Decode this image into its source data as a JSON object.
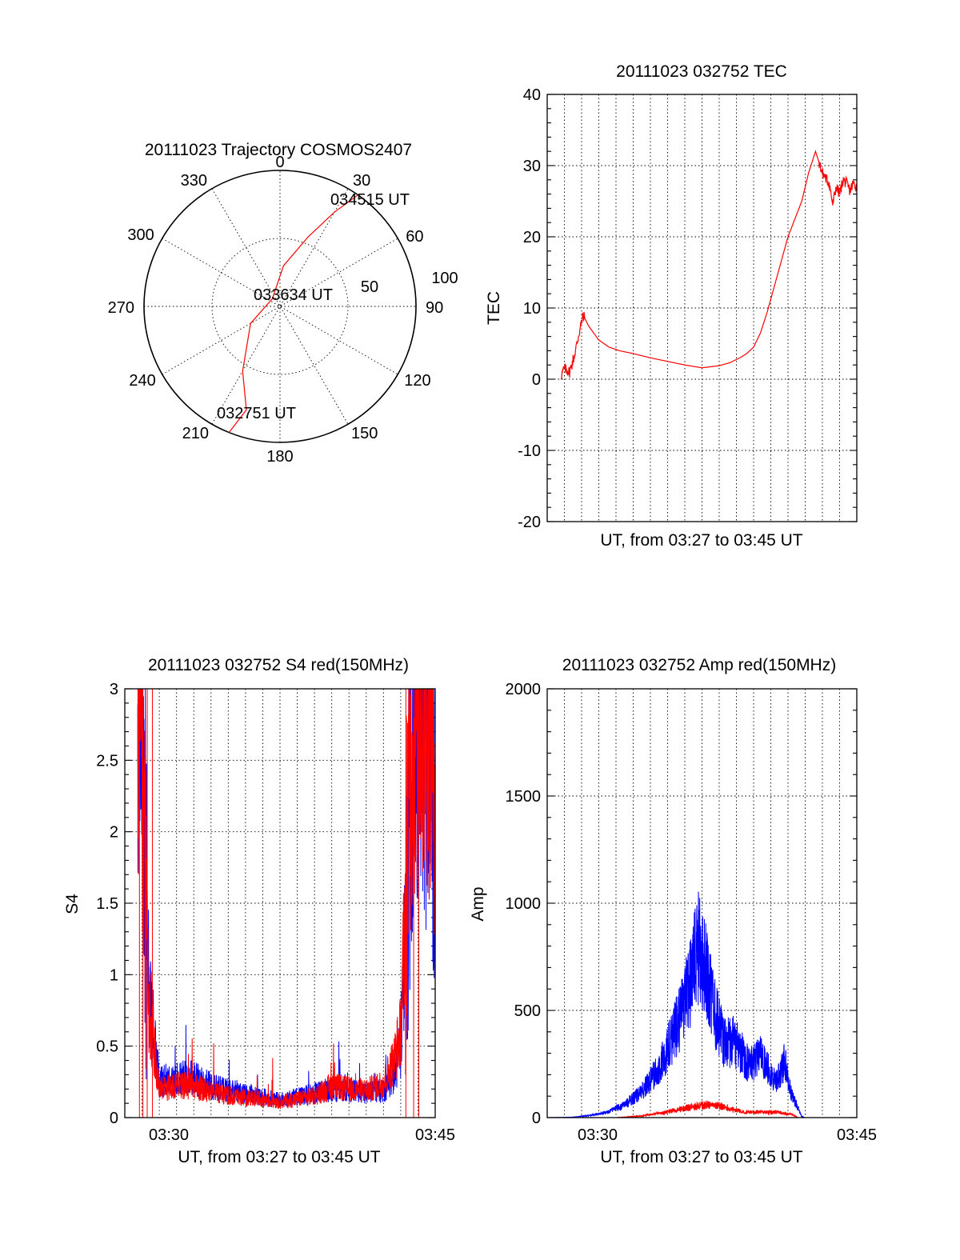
{
  "chart_data": [
    {
      "id": "polar",
      "type": "scatter",
      "title": "20111023 Trajectory COSMOS2407",
      "angle_labels": [
        "0",
        "30",
        "60",
        "90",
        "120",
        "150",
        "180",
        "210",
        "240",
        "270",
        "300",
        "330"
      ],
      "radius_labels": [
        "50",
        "100"
      ],
      "annotations": [
        {
          "text": "034515 UT"
        },
        {
          "text": "033634 UT"
        },
        {
          "text": "032751 UT"
        }
      ],
      "series": [
        {
          "color": "#ff0000",
          "points_az_r": [
            [
              35,
              100
            ],
            [
              30,
              80
            ],
            [
              22,
              55
            ],
            [
              5,
              30
            ],
            [
              -45,
              8
            ],
            [
              -120,
              25
            ],
            [
              -150,
              55
            ],
            [
              -162,
              80
            ],
            [
              -158,
              100
            ]
          ]
        }
      ],
      "colors": {
        "track": "#ff0000"
      }
    },
    {
      "id": "tec",
      "type": "line",
      "title": "20111023 032752 TEC",
      "xlabel": "UT, from 03:27 to 03:45 UT",
      "ylabel": "TEC",
      "xlim": [
        3.4667,
        3.75
      ],
      "ylim": [
        -20,
        40
      ],
      "yticks": [
        "40",
        "30",
        "20",
        "10",
        "0",
        "-10",
        "-20"
      ],
      "series": [
        {
          "color": "#ff0000",
          "x_minutes_past_0327": [
            0.8,
            1.0,
            1.3,
            1.6,
            1.9,
            2.1,
            2.4,
            3.0,
            3.6,
            4.2,
            5.0,
            6.0,
            7.0,
            8.0,
            9.0,
            10.0,
            10.6,
            11.2,
            11.6,
            12.0,
            12.4,
            12.8,
            13.2,
            13.6,
            14.0,
            14.4,
            14.8,
            15.2,
            15.6,
            16.0,
            16.4,
            16.6,
            16.8,
            17.0,
            17.2,
            17.4,
            17.6,
            17.8,
            18.0
          ],
          "y": [
            0.5,
            1.5,
            1.0,
            3.5,
            7.0,
            9.0,
            7.5,
            5.5,
            4.5,
            4.0,
            3.6,
            3.0,
            2.5,
            2.0,
            1.6,
            1.9,
            2.3,
            3.0,
            3.6,
            4.5,
            6.5,
            9.5,
            13.0,
            16.5,
            20.0,
            22.5,
            25.0,
            29.0,
            32.0,
            29.0,
            27.5,
            24.5,
            27.0,
            26.0,
            28.0,
            27.5,
            26.5,
            27.5,
            27.0
          ]
        }
      ]
    },
    {
      "id": "s4",
      "type": "line",
      "title": "20111023 032752 S4 red(150MHz)",
      "xlabel": "UT, from 03:27 to 03:45 UT",
      "ylabel": "S4",
      "ylim": [
        0,
        3
      ],
      "xticks": [
        "03:30",
        "03:45"
      ],
      "yticks": [
        "3",
        "2.5",
        "2",
        "1.5",
        "1",
        "0.5",
        "0"
      ],
      "series": [
        {
          "color": "#0000ff",
          "base_minutes": [
            0,
            0.9,
            1.4,
            2.0,
            3.0,
            4.0,
            5.0,
            7.0,
            9.0,
            11.0,
            12.0,
            13.0,
            14.0,
            15.0,
            15.6,
            16.0,
            16.6,
            17.0,
            17.5,
            18.0
          ],
          "base_s4": [
            3.0,
            3.0,
            0.9,
            0.25,
            0.28,
            0.28,
            0.22,
            0.17,
            0.12,
            0.17,
            0.2,
            0.19,
            0.17,
            0.19,
            0.28,
            0.5,
            2.4,
            2.8,
            2.6,
            2.2
          ]
        },
        {
          "color": "#ff0000",
          "base_minutes": [
            0,
            0.9,
            1.4,
            2.0,
            3.0,
            4.0,
            5.0,
            7.0,
            9.0,
            11.0,
            12.0,
            13.0,
            14.0,
            15.0,
            15.6,
            16.0,
            16.6,
            17.0,
            17.5,
            18.0
          ],
          "base_s4": [
            3.0,
            3.0,
            0.8,
            0.2,
            0.22,
            0.22,
            0.18,
            0.14,
            0.11,
            0.15,
            0.22,
            0.2,
            0.19,
            0.24,
            0.4,
            0.6,
            2.6,
            2.9,
            2.9,
            2.5
          ]
        }
      ]
    },
    {
      "id": "amp",
      "type": "line",
      "title": "20111023 032752 Amp red(150MHz)",
      "xlabel": "UT, from 03:27 to 03:45 UT",
      "ylabel": "Amp",
      "ylim": [
        0,
        2000
      ],
      "xticks": [
        "03:30",
        "03:45"
      ],
      "yticks": [
        "2000",
        "1500",
        "1000",
        "500",
        "0"
      ],
      "series": [
        {
          "color": "#0000ff",
          "base_minutes": [
            0,
            1.5,
            2.5,
            3.5,
            4.5,
            5.5,
            6.5,
            7.2,
            7.8,
            8.3,
            8.8,
            9.3,
            9.8,
            10.3,
            10.8,
            11.3,
            11.8,
            12.3,
            12.8,
            13.3,
            13.8,
            14.2,
            14.5,
            14.8,
            15.0,
            18.0
          ],
          "base_amp": [
            0,
            2,
            10,
            25,
            60,
            120,
            230,
            360,
            480,
            620,
            800,
            660,
            470,
            340,
            360,
            300,
            240,
            300,
            230,
            160,
            260,
            110,
            60,
            5,
            0,
            0
          ]
        },
        {
          "color": "#ff0000",
          "base_minutes": [
            0,
            4.0,
            5.5,
            6.5,
            7.5,
            8.5,
            9.5,
            10.5,
            11.5,
            12.5,
            13.5,
            14.3,
            14.6,
            18.0
          ],
          "base_amp": [
            0,
            0,
            8,
            20,
            35,
            50,
            62,
            45,
            25,
            25,
            25,
            12,
            0,
            0
          ]
        }
      ]
    }
  ]
}
